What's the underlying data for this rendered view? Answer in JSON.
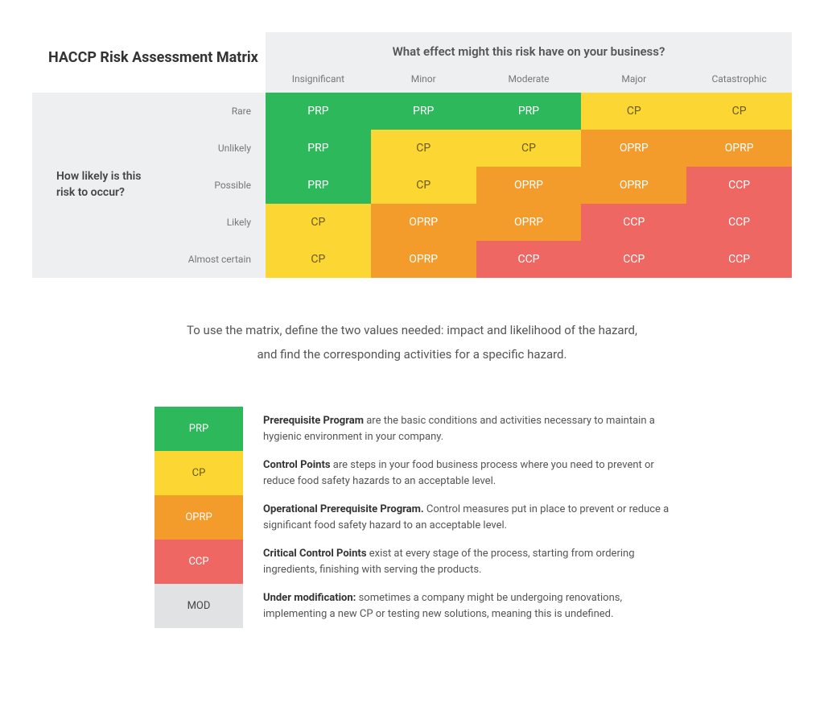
{
  "title": "HACCP Risk Assessment Matrix",
  "column_question": "What effect might this risk have on your business?",
  "row_question": "How likely is this risk to occur?",
  "columns": [
    "Insignificant",
    "Minor",
    "Moderate",
    "Major",
    "Catastrophic"
  ],
  "rows": [
    "Rare",
    "Unlikely",
    "Possible",
    "Likely",
    "Almost certain"
  ],
  "colors": {
    "PRP": "#2eb85c",
    "CP": "#fcd734",
    "OPRP": "#f39c2c",
    "CCP": "#ef6762",
    "MOD": "#e1e2e3"
  },
  "text_colors": {
    "PRP": "#ffffff",
    "CP": "#6b5a1a",
    "OPRP": "#ffffff",
    "CCP": "#ffffff",
    "MOD": "#444444"
  },
  "grid": [
    [
      "PRP",
      "PRP",
      "PRP",
      "CP",
      "CP"
    ],
    [
      "PRP",
      "CP",
      "CP",
      "OPRP",
      "OPRP"
    ],
    [
      "PRP",
      "CP",
      "OPRP",
      "OPRP",
      "CCP"
    ],
    [
      "CP",
      "OPRP",
      "OPRP",
      "CCP",
      "CCP"
    ],
    [
      "CP",
      "OPRP",
      "CCP",
      "CCP",
      "CCP"
    ]
  ],
  "instruction_line1": "To use the matrix, define the two values needed: impact and likelihood of the hazard,",
  "instruction_line2": "and find the corresponding activities for a specific hazard.",
  "legend": [
    {
      "code": "PRP",
      "bold": "Prerequisite Program",
      "text": " are the basic conditions and activities necessary to maintain a hygienic environment in your company."
    },
    {
      "code": "CP",
      "bold": "Control Points",
      "text": " are steps in your food business process where you need to prevent or reduce food safety hazards to an acceptable level."
    },
    {
      "code": "OPRP",
      "bold": "Operational Prerequisite Program.",
      "text": " Control measures put in place to prevent or reduce a significant food safety hazard to an acceptable level."
    },
    {
      "code": "CCP",
      "bold": "Critical Control Points",
      "text": " exist at every stage of the process, starting from ordering ingredients, finishing with serving the products."
    },
    {
      "code": "MOD",
      "bold": "Under modification:",
      "text": " sometimes a company might be undergoing renovations, implementing a new CP or testing new solutions, meaning this is undefined."
    }
  ]
}
